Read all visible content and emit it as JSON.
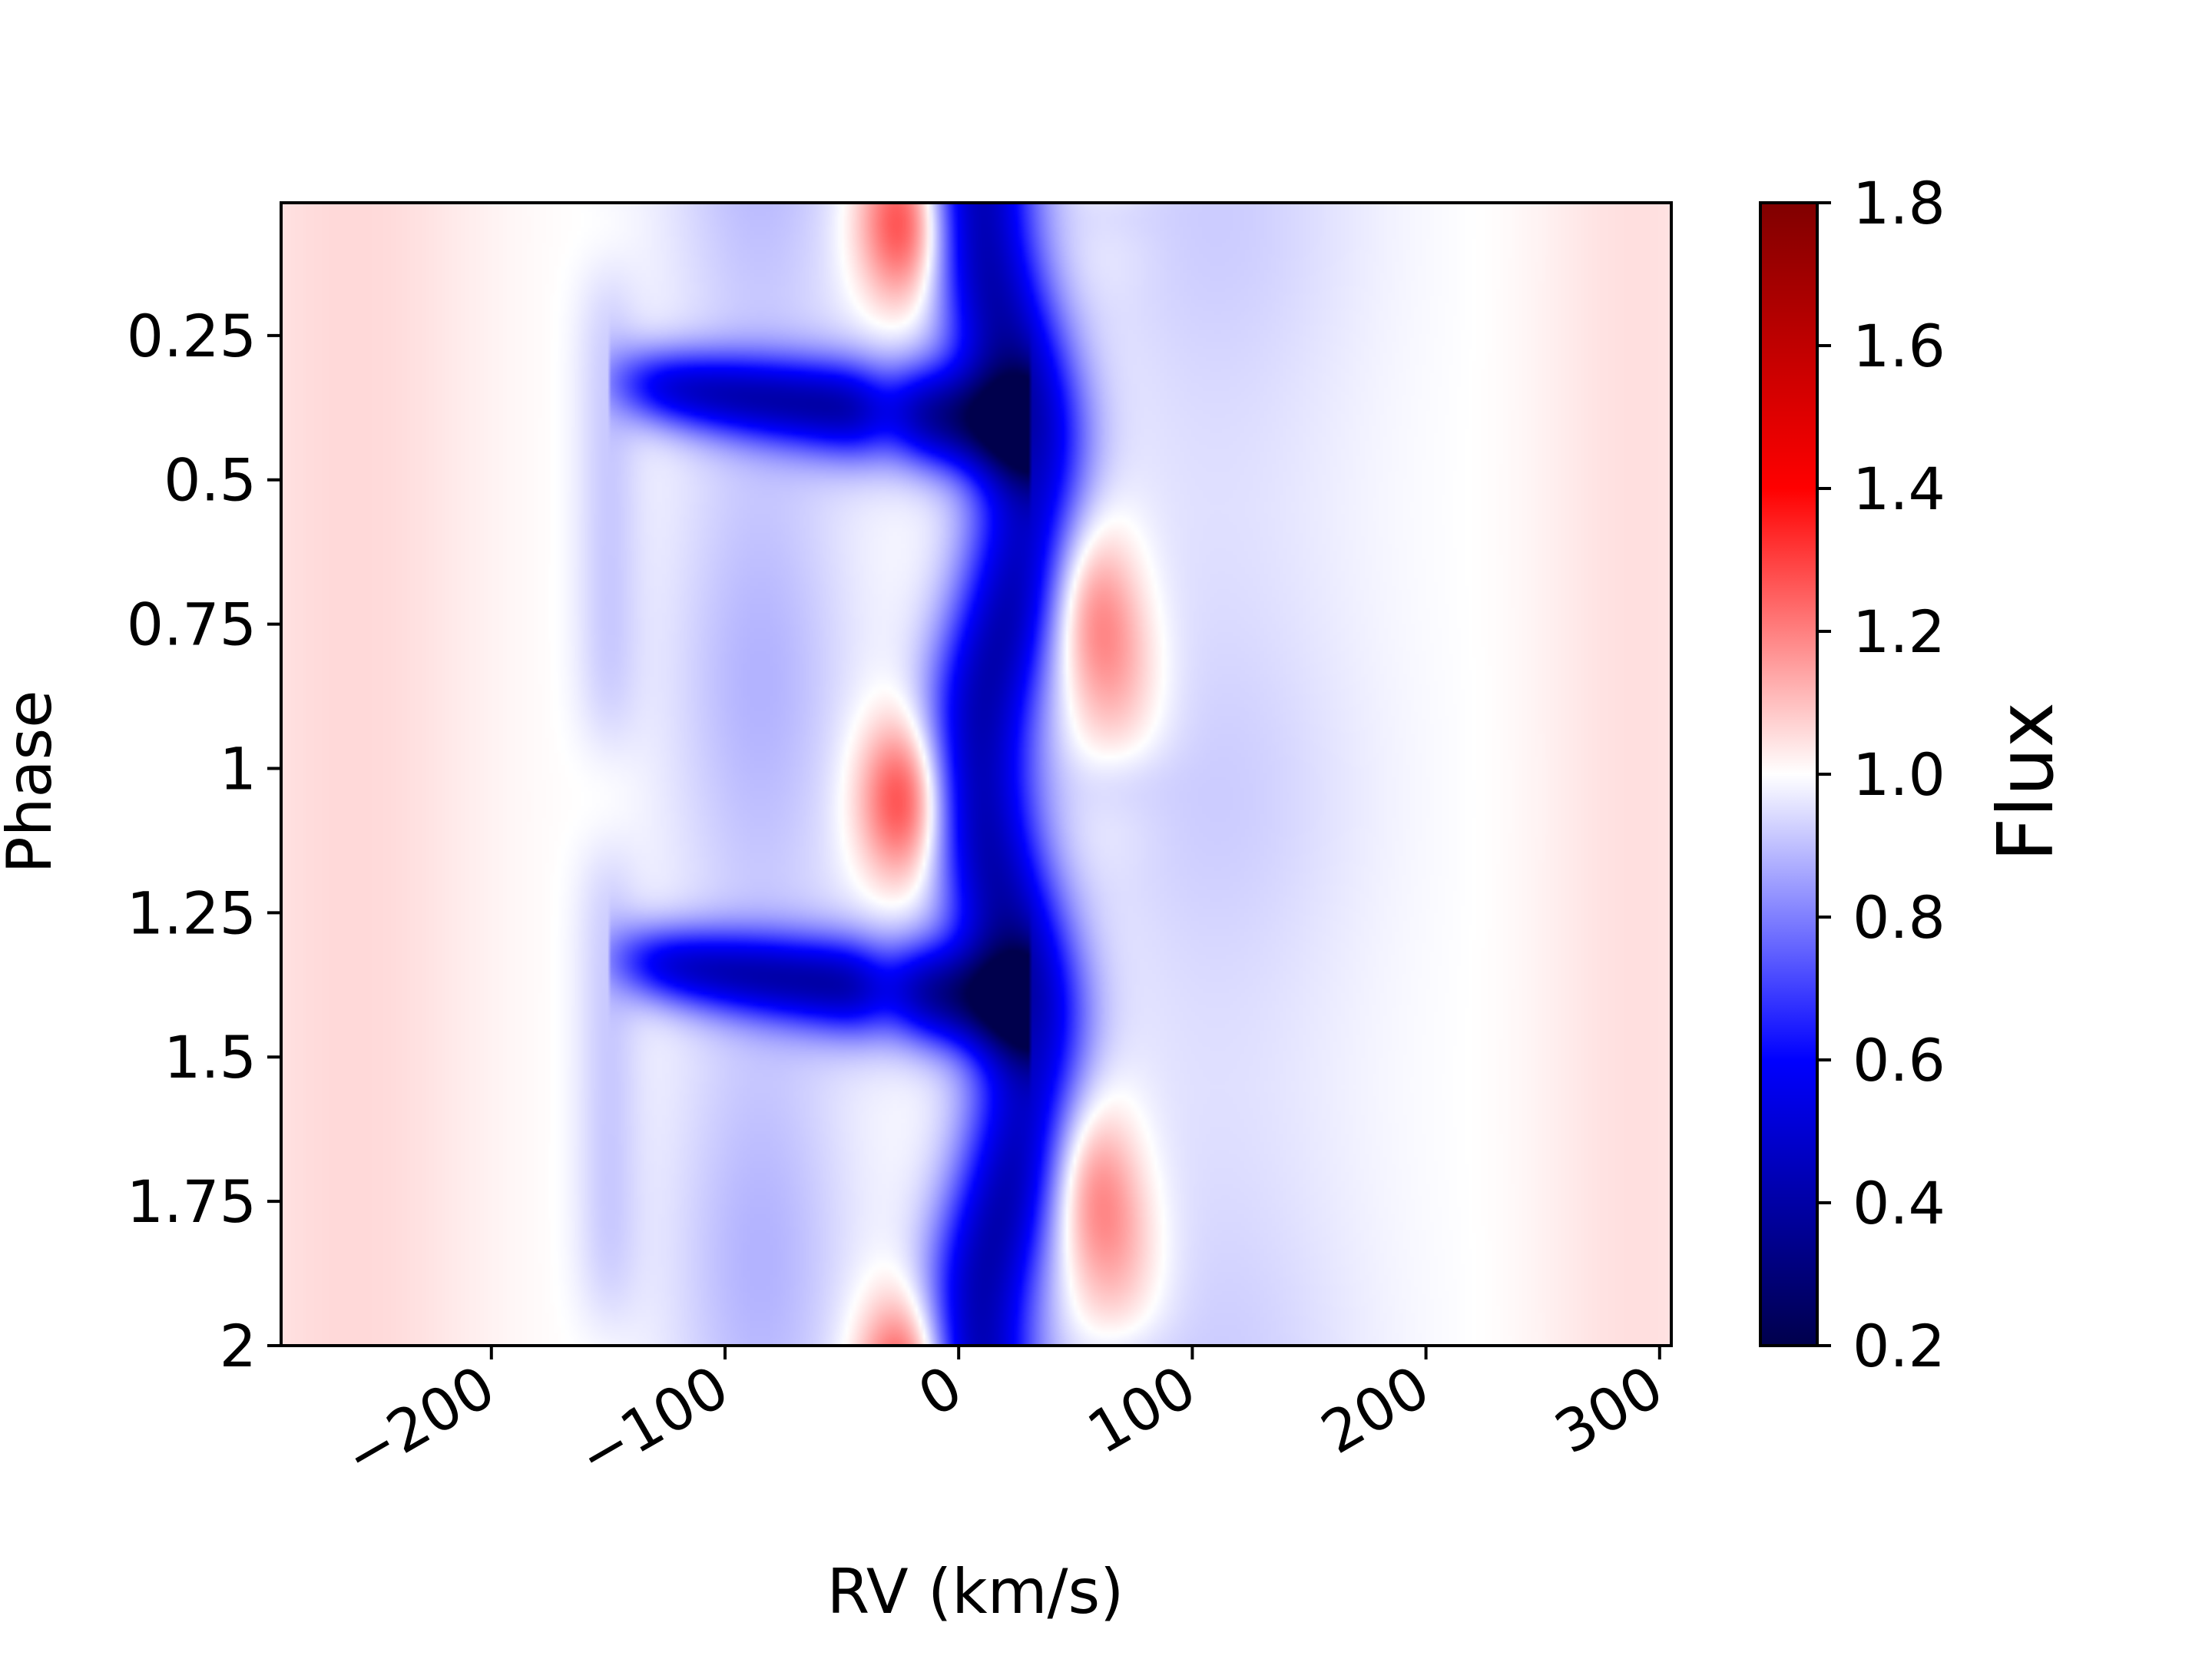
{
  "chart_data": {
    "type": "heatmap",
    "title": "",
    "xlabel": "RV (km/s)",
    "ylabel": "Phase",
    "colorbar_label": "Flux",
    "colormap": "seismic",
    "xlim": [
      -290,
      305
    ],
    "ylim": [
      2.0,
      0.02
    ],
    "x_ticks": [
      -200,
      -100,
      0,
      100,
      200,
      300
    ],
    "x_tick_labels": [
      "−200",
      "−100",
      "0",
      "100",
      "200",
      "300"
    ],
    "y_ticks": [
      0.25,
      0.5,
      0.75,
      1.0,
      1.25,
      1.5,
      1.75,
      2.0
    ],
    "y_tick_labels": [
      "0.25",
      "0.5",
      "0.75",
      "1",
      "1.25",
      "1.5",
      "1.75",
      "2"
    ],
    "colorbar_range": [
      0.2,
      1.8
    ],
    "colorbar_ticks": [
      0.2,
      0.4,
      0.6,
      0.8,
      1.0,
      1.2,
      1.4,
      1.6,
      1.8
    ],
    "colorbar_tick_labels": [
      "0.2",
      "0.4",
      "0.6",
      "0.8",
      "1.0",
      "1.2",
      "1.4",
      "1.6",
      "1.8"
    ],
    "colors": {
      "min": "#00004c",
      "mid": "#ffffff",
      "max": "#800000"
    },
    "features": [
      {
        "kind": "absorption-core",
        "rv_center_at_phase_0": 20,
        "rv_amplitude": 12,
        "rv_width": 22,
        "depth": 0.55
      },
      {
        "kind": "absorption-tail",
        "phases": [
          0.33,
          1.33
        ],
        "rv_from": -140,
        "rv_to": 20,
        "min_flux": 0.5
      },
      {
        "kind": "emission",
        "rv_center": 58,
        "phases": [
          0.75,
          1.6
        ],
        "max_flux": 1.25
      },
      {
        "kind": "emission",
        "rv_center": -20,
        "phases": [
          0.02,
          1.05,
          2.0
        ],
        "max_flux": 1.38
      },
      {
        "kind": "absorption-weak",
        "rv_center": -85,
        "min_flux": 0.88
      },
      {
        "kind": "absorption-weak",
        "rv_center": 110,
        "min_flux": 0.92
      }
    ]
  }
}
